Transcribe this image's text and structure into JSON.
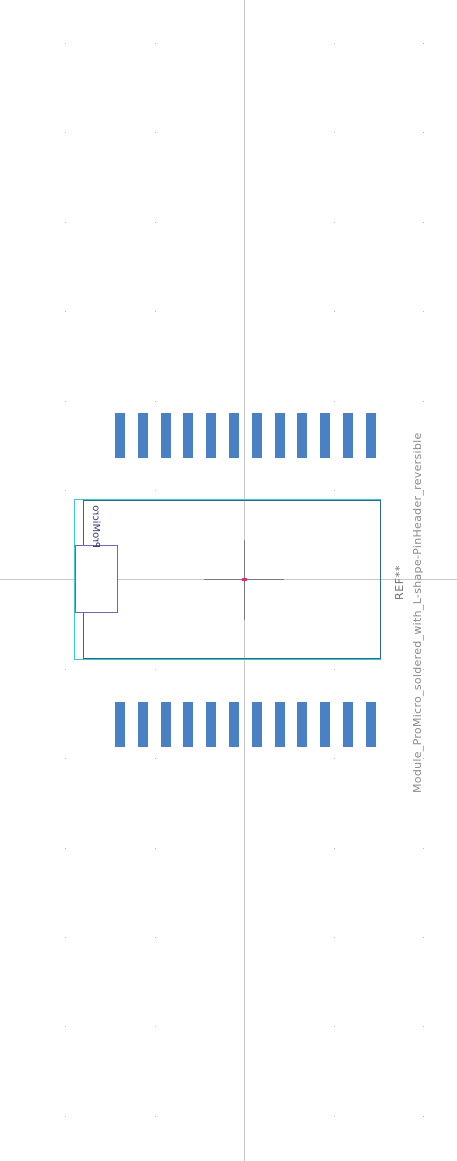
{
  "footprint": {
    "name": "Module_ProMicro_soldered_with_L-shape-PinHeader_reversible",
    "reference": "REF**",
    "value_label": "ProMicro",
    "pads_per_row": 12
  },
  "colors": {
    "background": "#ffffff",
    "grid_dot": "#b8b8b8",
    "crosshair": "#c8c8c8",
    "pad": "#4a80c4",
    "courtyard": "#3ec8c8",
    "fab_outline": "#2a6a8a",
    "origin_marker": "#e0306a",
    "text_muted": "#8c8c8c",
    "label_outline": "#6a6ab8"
  }
}
